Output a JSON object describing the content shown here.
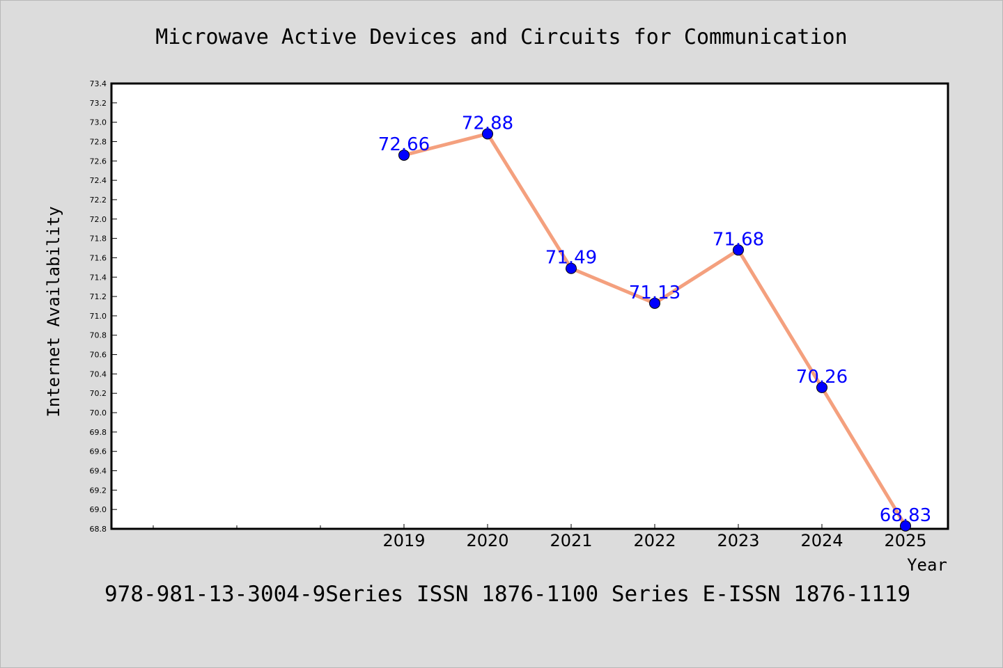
{
  "chart_data": {
    "type": "line",
    "title": "Microwave Active Devices and Circuits for Communication",
    "caption": "978-981-13-3004-9Series ISSN 1876-1100 Series E-ISSN 1876-1119",
    "xlabel": "Year",
    "ylabel": "Internet Availability",
    "categories": [
      "2019",
      "2020",
      "2021",
      "2022",
      "2023",
      "2024",
      "2025"
    ],
    "series": [
      {
        "values": [
          72.66,
          72.88,
          71.49,
          71.13,
          71.68,
          70.26,
          68.83
        ],
        "data_labels": [
          "72.66",
          "72.88",
          "71.49",
          "71.13",
          "71.68",
          "70.26",
          "68.83"
        ]
      }
    ],
    "ylim": [
      68.8,
      73.4
    ],
    "yticks": [
      "68.8",
      "69.0",
      "69.2",
      "69.4",
      "69.6",
      "69.8",
      "70.0",
      "70.2",
      "70.4",
      "70.6",
      "70.8",
      "71.0",
      "71.2",
      "71.4",
      "71.6",
      "71.8",
      "72.0",
      "72.2",
      "72.4",
      "72.6",
      "72.8",
      "73.0",
      "73.2",
      "73.4"
    ],
    "grid": false,
    "legend": "none",
    "colors": {
      "line": "#f4a07e",
      "marker": "#0000ff",
      "data_label": "#0000ff",
      "background": "#dcdcdc",
      "plot_background": "#ffffff"
    }
  }
}
